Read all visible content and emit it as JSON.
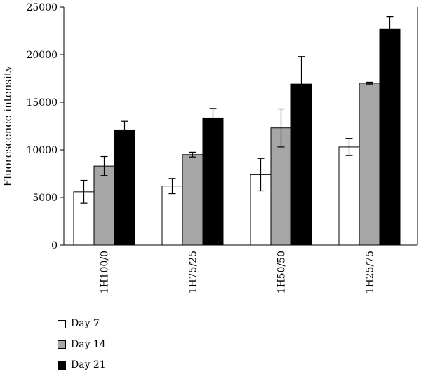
{
  "chart_data": {
    "type": "bar",
    "title": "",
    "xlabel": "",
    "ylabel": "Fluorescence intensity",
    "ylim": [
      0,
      25000
    ],
    "yticks": [
      "0",
      "5000",
      "10000",
      "15000",
      "20000",
      "25000"
    ],
    "categories": [
      "1H100/0",
      "1H75/25",
      "1H50/50",
      "1H25/75"
    ],
    "grid": false,
    "legend_position": "bottom-left",
    "series": [
      {
        "name": "Day 7",
        "color": "#ffffff",
        "values": [
          5600,
          6200,
          7400,
          10300
        ],
        "errors": [
          1200,
          800,
          1700,
          900
        ]
      },
      {
        "name": "Day 14",
        "color": "#a6a6a6",
        "values": [
          8300,
          9500,
          12300,
          17000
        ],
        "errors": [
          1000,
          250,
          2000,
          100
        ]
      },
      {
        "name": "Day 21",
        "color": "#000000",
        "values": [
          12100,
          13350,
          16900,
          22700
        ],
        "errors": [
          900,
          1000,
          2900,
          1300
        ]
      }
    ]
  }
}
